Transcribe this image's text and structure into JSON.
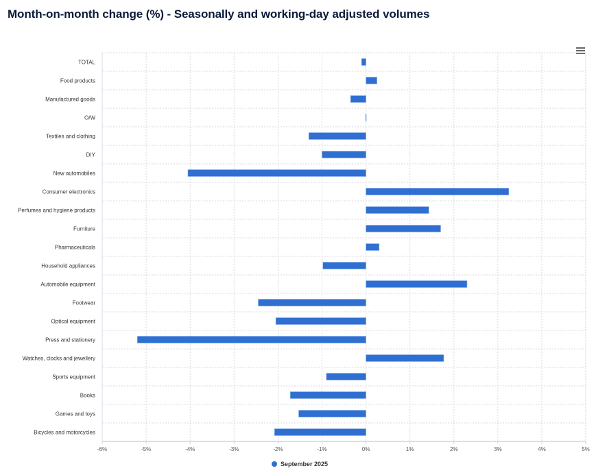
{
  "title": "Month-on-month change (%) - Seasonally and working-day adjusted volumes",
  "menu_icon": "hamburger-menu-icon",
  "colors": {
    "bar": "#2f6fd1",
    "grid": "#d9d9d9",
    "title": "#0b1a3a"
  },
  "chart_data": {
    "type": "bar",
    "orientation": "horizontal",
    "title": "Month-on-month change (%) - Seasonally and working-day adjusted volumes",
    "xlabel": "",
    "ylabel": "",
    "xlim": [
      -6,
      5
    ],
    "x_ticks": [
      -6,
      -5,
      -4,
      -3,
      -2,
      -1,
      0,
      1,
      2,
      3,
      4,
      5
    ],
    "x_tick_labels": [
      "-6%",
      "-5%",
      "-4%",
      "-3%",
      "-2%",
      "-1%",
      "0%",
      "1%",
      "2%",
      "3%",
      "4%",
      "5%"
    ],
    "grid": true,
    "legend_position": "bottom-center",
    "categories": [
      "TOTAL",
      "Food products",
      "Manufactured goods",
      "O/W",
      "Textiles and clothing",
      "DIY",
      "New automobiles",
      "Consumer electronics",
      "Perfumes and hygiene products",
      "Furniture",
      "Pharmaceuticals",
      "Household appliances",
      "Automobile equipment",
      "Footwear",
      "Optical equipment",
      "Press and stationery",
      "Watches, clocks and jewellery",
      "Sports equipment",
      "Books",
      "Games and toys",
      "Bicycles and motorcycles"
    ],
    "series": [
      {
        "name": "September 2025",
        "values": [
          -0.1,
          0.25,
          -0.35,
          0.0,
          -1.3,
          -1.0,
          -4.05,
          3.25,
          1.43,
          1.7,
          0.3,
          -0.98,
          2.3,
          -2.45,
          -2.05,
          -5.2,
          1.77,
          -0.9,
          -1.72,
          -1.53,
          -2.08
        ]
      }
    ]
  }
}
